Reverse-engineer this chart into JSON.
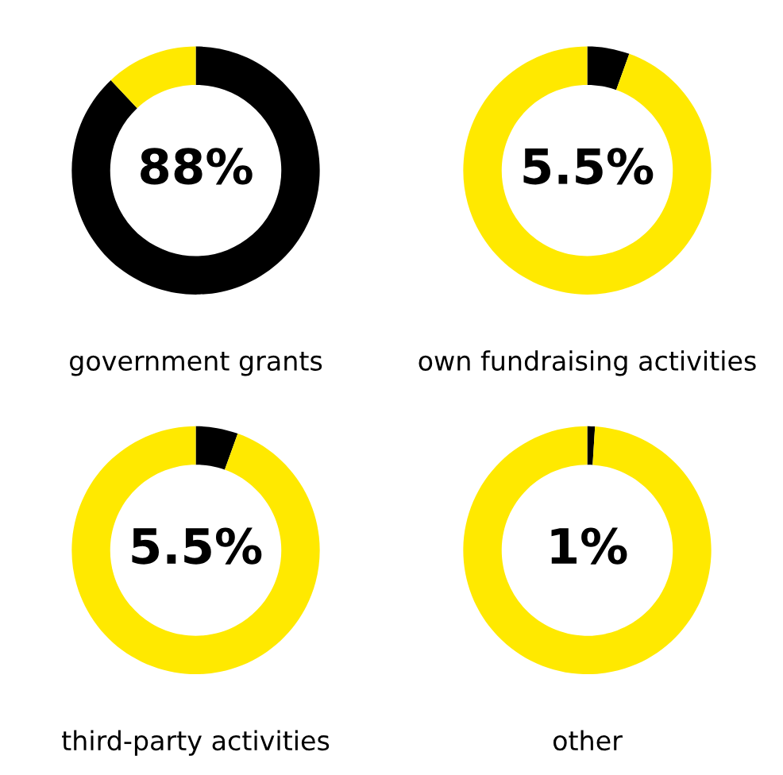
{
  "chart_data": [
    {
      "type": "donut",
      "title": "government grants",
      "categories": [
        null,
        null
      ],
      "values": [
        88,
        12
      ],
      "colors": [
        "#000000",
        "#ffe900"
      ],
      "annotations": [
        "88%"
      ]
    },
    {
      "type": "donut",
      "title": "own fundraising activities",
      "categories": [
        null,
        null
      ],
      "values": [
        5.5,
        94.5
      ],
      "colors": [
        "#000000",
        "#ffe900"
      ],
      "annotations": [
        "5.5%"
      ]
    },
    {
      "type": "donut",
      "title": "third-party activities",
      "categories": [
        null,
        null
      ],
      "values": [
        5.5,
        94.5
      ],
      "colors": [
        "#000000",
        "#ffe900"
      ],
      "annotations": [
        "5.5%"
      ]
    },
    {
      "type": "donut",
      "title": "other",
      "categories": [
        null,
        null
      ],
      "values": [
        1,
        99
      ],
      "colors": [
        "#000000",
        "#ffe900"
      ],
      "annotations": [
        "1%"
      ]
    }
  ]
}
